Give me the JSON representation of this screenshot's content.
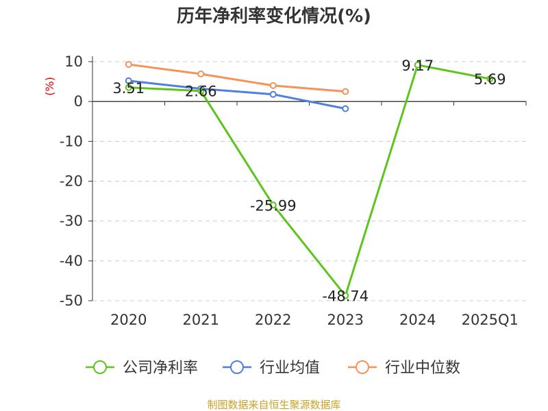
{
  "chart_data": {
    "type": "line",
    "title": "历年净利率变化情况(%)",
    "ylabel": "(%)",
    "ylim": [
      -50,
      10
    ],
    "yticks": [
      10,
      0,
      -10,
      -20,
      -30,
      -40,
      -50
    ],
    "categories": [
      "2020",
      "2021",
      "2022",
      "2023",
      "2024",
      "2025Q1"
    ],
    "grid": true,
    "legend": "bottom",
    "series": [
      {
        "name": "公司净利率",
        "color": "#5cc41a",
        "values": [
          3.51,
          2.66,
          -25.99,
          -48.74,
          9.17,
          5.69
        ],
        "labels": [
          "3.51",
          "2.66",
          "-25.99",
          "-48.74",
          "9.17",
          "5.69"
        ]
      },
      {
        "name": "行业均值",
        "color": "#4f7fdc",
        "values": [
          5.2,
          3.2,
          1.8,
          -1.8,
          null,
          null
        ]
      },
      {
        "name": "行业中位数",
        "color": "#f59257",
        "values": [
          9.3,
          6.9,
          4.0,
          2.5,
          null,
          null
        ]
      }
    ]
  },
  "footer": {
    "source": "制图数据来自恒生聚源数据库"
  }
}
